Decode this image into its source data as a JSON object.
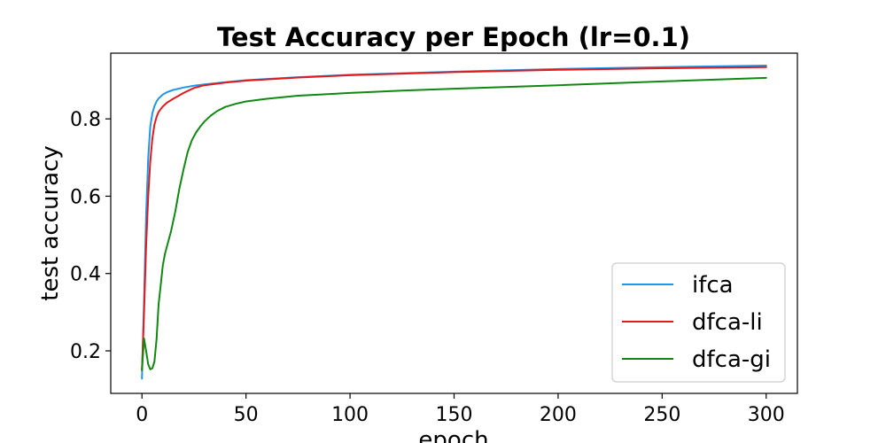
{
  "chart_data": {
    "type": "line",
    "title": "Test Accuracy per Epoch (lr=0.1)",
    "xlabel": "epoch",
    "ylabel": "test accuracy",
    "xlim": [
      -15,
      315
    ],
    "ylim": [
      0.09,
      0.97
    ],
    "xticks": [
      0,
      50,
      100,
      150,
      200,
      250,
      300
    ],
    "yticks": [
      0.2,
      0.4,
      0.6,
      0.8
    ],
    "xtick_labels": [
      "0",
      "50",
      "100",
      "150",
      "200",
      "250",
      "300"
    ],
    "ytick_labels": [
      "0.2",
      "0.4",
      "0.6",
      "0.8"
    ],
    "grid": false,
    "legend_position": "bottom-right",
    "series": [
      {
        "name": "ifca",
        "color": "#1f96e8",
        "x": [
          0,
          1,
          2,
          3,
          4,
          5,
          6,
          7,
          8,
          10,
          12,
          15,
          20,
          25,
          30,
          40,
          50,
          75,
          100,
          150,
          200,
          250,
          300
        ],
        "y": [
          0.128,
          0.33,
          0.55,
          0.7,
          0.78,
          0.815,
          0.833,
          0.845,
          0.853,
          0.863,
          0.869,
          0.875,
          0.881,
          0.886,
          0.889,
          0.895,
          0.9,
          0.908,
          0.914,
          0.922,
          0.929,
          0.934,
          0.938
        ]
      },
      {
        "name": "dfca-li",
        "color": "#e31a1c",
        "x": [
          0,
          1,
          2,
          3,
          4,
          5,
          6,
          7,
          8,
          10,
          12,
          15,
          20,
          25,
          30,
          40,
          50,
          75,
          100,
          150,
          200,
          250,
          300
        ],
        "y": [
          0.15,
          0.3,
          0.47,
          0.6,
          0.69,
          0.75,
          0.785,
          0.805,
          0.818,
          0.832,
          0.842,
          0.852,
          0.867,
          0.88,
          0.887,
          0.894,
          0.899,
          0.907,
          0.913,
          0.921,
          0.927,
          0.931,
          0.934
        ]
      },
      {
        "name": "dfca-gi",
        "color": "#118811",
        "x": [
          0,
          1,
          2,
          3,
          4,
          5,
          6,
          7,
          8,
          9,
          10,
          11,
          12,
          14,
          16,
          18,
          20,
          22,
          24,
          26,
          28,
          30,
          33,
          36,
          40,
          45,
          50,
          60,
          75,
          100,
          125,
          150,
          200,
          250,
          300
        ],
        "y": [
          0.15,
          0.232,
          0.2,
          0.165,
          0.152,
          0.155,
          0.172,
          0.23,
          0.32,
          0.37,
          0.42,
          0.45,
          0.47,
          0.51,
          0.56,
          0.62,
          0.67,
          0.715,
          0.745,
          0.765,
          0.78,
          0.793,
          0.808,
          0.82,
          0.831,
          0.839,
          0.845,
          0.852,
          0.86,
          0.867,
          0.873,
          0.878,
          0.887,
          0.897,
          0.906
        ]
      }
    ]
  }
}
